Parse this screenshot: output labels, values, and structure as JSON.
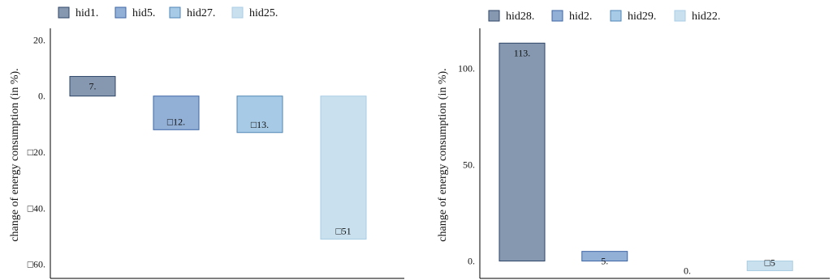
{
  "chart_data": [
    {
      "type": "bar",
      "title": "",
      "xlabel": "",
      "ylabel": "change of energy consumption (in %).",
      "ylim": [
        -65,
        23
      ],
      "yticks": [
        20,
        0,
        -20,
        -40,
        -60
      ],
      "ytick_labels": [
        "20.",
        "0.",
        "□20.",
        "□40.",
        "□60."
      ],
      "legend_position": "top-left",
      "series": [
        {
          "name": "hid1.",
          "value": 7,
          "label": "7.",
          "color": "#8598b0",
          "stroke": "#2e4668"
        },
        {
          "name": "hid5.",
          "value": -12,
          "label": "□12.",
          "color": "#92afd6",
          "stroke": "#3d66a6"
        },
        {
          "name": "hid27.",
          "value": -13,
          "label": "□13.",
          "color": "#a7cbe6",
          "stroke": "#4f86b5"
        },
        {
          "name": "hid25.",
          "value": -51,
          "label": "□51",
          "color": "#c9e0ef",
          "stroke": "#a9cde4"
        }
      ]
    },
    {
      "type": "bar",
      "title": "",
      "xlabel": "",
      "ylabel": "change of energy consumption (in %).",
      "ylim": [
        -9,
        119
      ],
      "yticks": [
        100,
        50,
        0
      ],
      "ytick_labels": [
        "100.",
        "50.",
        "0."
      ],
      "legend_position": "top-left",
      "series": [
        {
          "name": "hid28.",
          "value": 113,
          "label": "113.",
          "color": "#8598b0",
          "stroke": "#2e4668"
        },
        {
          "name": "hid2.",
          "value": 5,
          "label": "5.",
          "color": "#92afd6",
          "stroke": "#3d66a6"
        },
        {
          "name": "hid29.",
          "value": 0,
          "label": "0.",
          "color": "#a7cbe6",
          "stroke": "#4f86b5"
        },
        {
          "name": "hid22.",
          "value": -5,
          "label": "□5",
          "color": "#c9e0ef",
          "stroke": "#a9cde4"
        }
      ]
    }
  ]
}
